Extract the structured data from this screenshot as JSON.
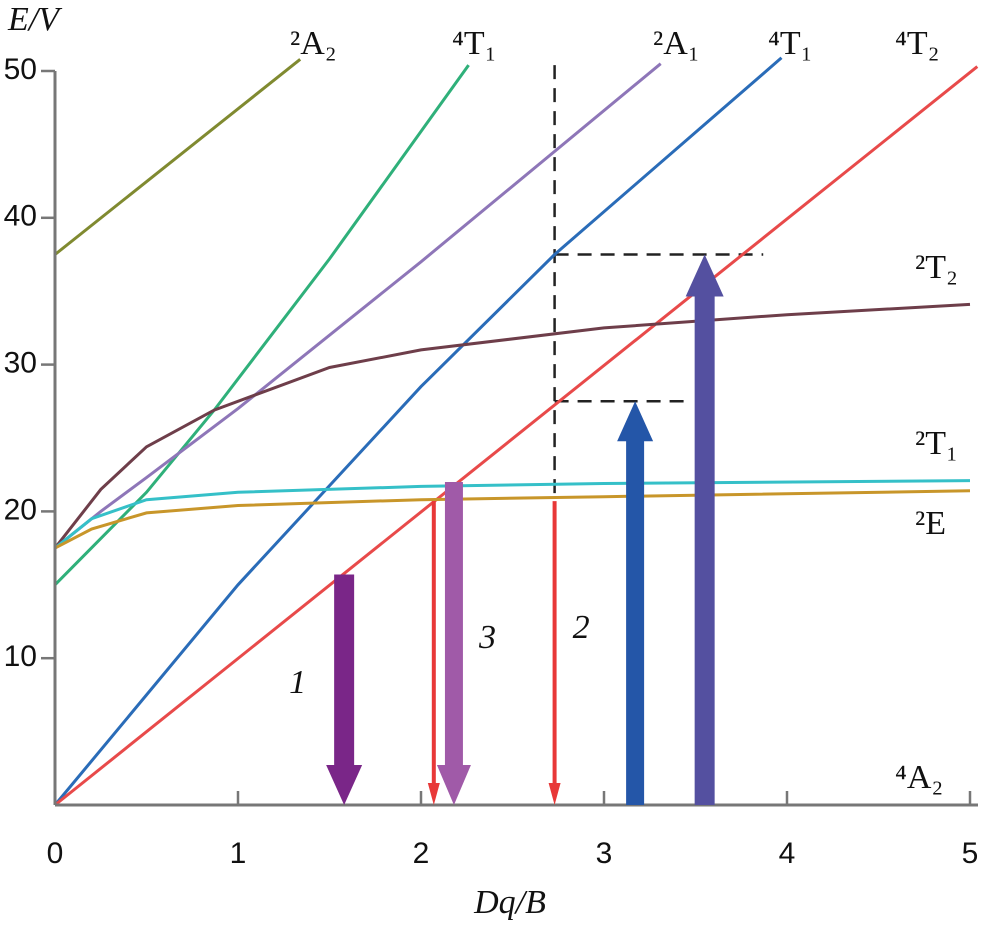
{
  "chart_data": {
    "type": "line",
    "y_label": "E/V",
    "x_label": "Dq/B",
    "xlim": [
      0,
      5
    ],
    "ylim": [
      0,
      50
    ],
    "xticks": [
      0,
      1,
      2,
      3,
      4,
      5
    ],
    "yticks": [
      10,
      20,
      30,
      40,
      50
    ],
    "series": [
      {
        "name": "²A₂",
        "color": "#808a30",
        "x": [
          0,
          1.34
        ],
        "values": [
          37.5,
          50.8
        ]
      },
      {
        "name": "⁴T₁",
        "color": "#2fb07a",
        "x": [
          0,
          0.5,
          0.87,
          1.5,
          2.26
        ],
        "values": [
          15,
          21.3,
          26.9,
          37.2,
          50.4
        ]
      },
      {
        "name": "²A₁",
        "color": "#8e76b8",
        "x": [
          0,
          0.25,
          0.5,
          1,
          2,
          3.31
        ],
        "values": [
          17.5,
          20,
          22.3,
          27,
          37,
          50.5
        ]
      },
      {
        "name": "⁴T₁",
        "color": "#2a6cb8",
        "x": [
          0,
          1,
          2,
          2.73,
          3.97
        ],
        "values": [
          0,
          15,
          28.5,
          37.5,
          50.9
        ]
      },
      {
        "name": "⁴T₂",
        "color": "#e84a4a",
        "x": [
          0,
          5.04
        ],
        "values": [
          0,
          50.3
        ]
      },
      {
        "name": "²T₂",
        "color": "#6e3e4a",
        "x": [
          0,
          0.25,
          0.5,
          0.87,
          1.5,
          2,
          3,
          4,
          5
        ],
        "values": [
          17.5,
          21.5,
          24.4,
          26.9,
          29.8,
          31,
          32.5,
          33.4,
          34.1
        ]
      },
      {
        "name": "²T₁",
        "color": "#35c0c8",
        "x": [
          0,
          0.2,
          0.5,
          1,
          2,
          3,
          5
        ],
        "values": [
          17.5,
          19.5,
          20.8,
          21.3,
          21.7,
          21.9,
          22.1
        ]
      },
      {
        "name": "²E",
        "color": "#c8962a",
        "x": [
          0,
          0.2,
          0.5,
          1,
          2,
          3,
          5
        ],
        "values": [
          17.5,
          18.8,
          19.9,
          20.4,
          20.8,
          21,
          21.4
        ]
      }
    ],
    "ground_label": "⁴A₂",
    "arrows": [
      {
        "label": "1",
        "color": "#7a2688",
        "x": 1.58,
        "from": 15.7,
        "to": 0
      },
      {
        "color": "#e83838",
        "x": 2.07,
        "from": 20.7,
        "to": 0
      },
      {
        "label": "3",
        "color": "#a05aa8",
        "x": 2.18,
        "from": 22,
        "to": 0
      },
      {
        "label": "2",
        "color": "#e83838",
        "x": 2.73,
        "from": 20.7,
        "to": 0
      },
      {
        "color": "#2456a8",
        "x": 3.17,
        "from": 0,
        "to": 27.5
      },
      {
        "color": "#5450a0",
        "x": 3.55,
        "from": 0,
        "to": 37.5
      }
    ],
    "guides": [
      {
        "x": [
          2.73,
          2.73
        ],
        "y": [
          50.4,
          20.7
        ]
      },
      {
        "x": [
          2.73,
          3.87
        ],
        "y": [
          37.5,
          37.5
        ]
      },
      {
        "x": [
          2.73,
          3.47
        ],
        "y": [
          27.5,
          27.5
        ]
      }
    ]
  }
}
